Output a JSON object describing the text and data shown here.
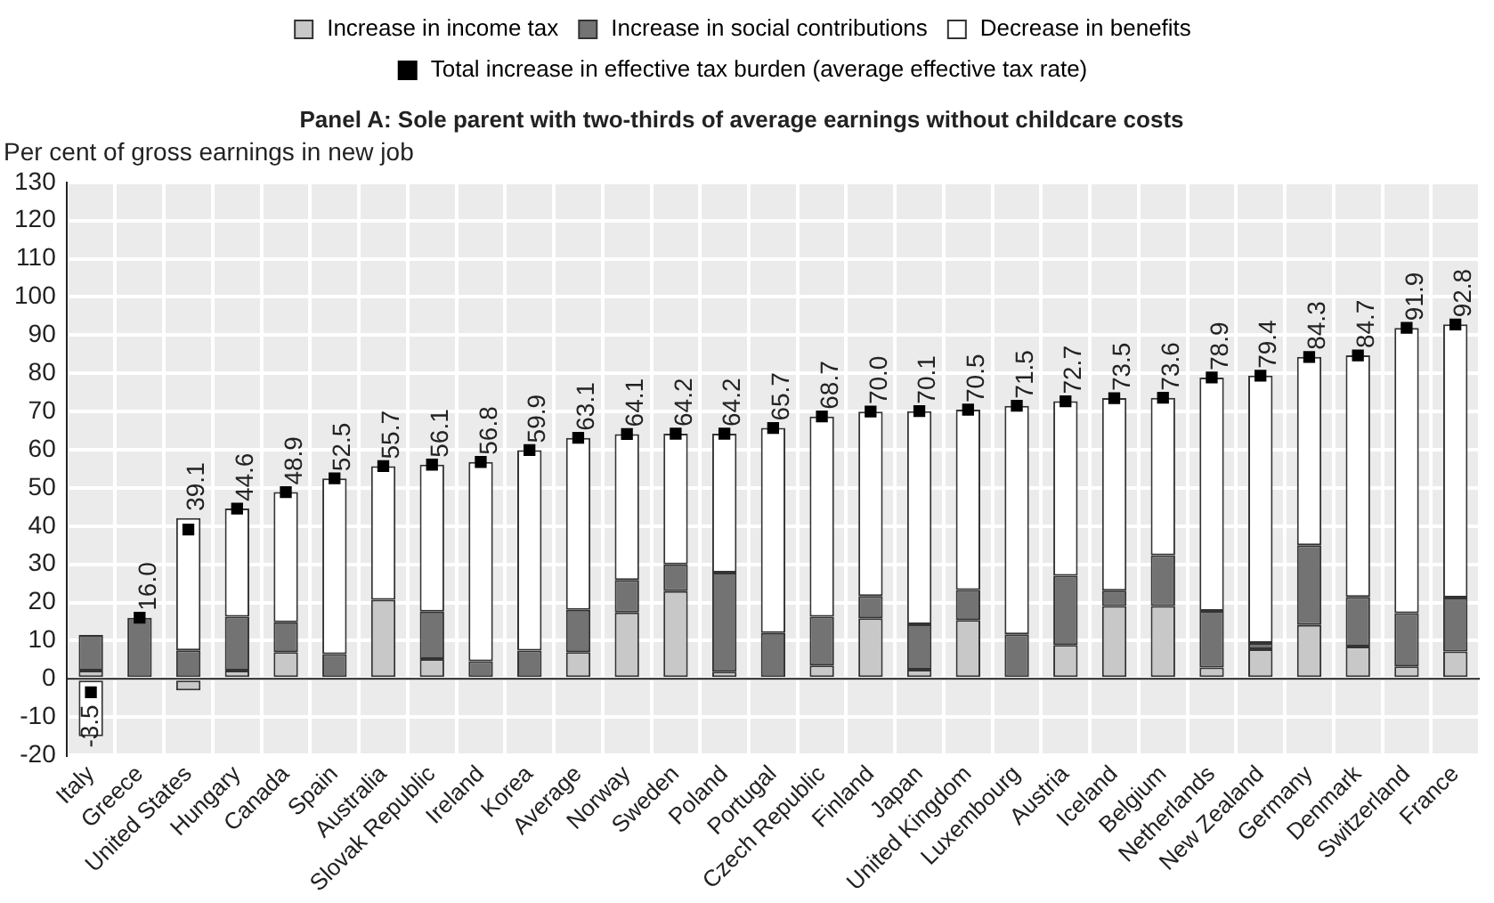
{
  "chart_data": {
    "type": "bar",
    "stacked": true,
    "title": "Panel A: Sole parent with two-thirds of average earnings without childcare costs",
    "ylabel": "Per cent of gross earnings in new job",
    "categories": [
      "Italy",
      "Greece",
      "United States",
      "Hungary",
      "Canada",
      "Spain",
      "Australia",
      "Slovak Republic",
      "Ireland",
      "Korea",
      "Average",
      "Norway",
      "Sweden",
      "Poland",
      "Portugal",
      "Czech Republic",
      "Finland",
      "Japan",
      "United Kingdom",
      "Luxembourg",
      "Austria",
      "Iceland",
      "Belgium",
      "Netherlands",
      "New Zealand",
      "Germany",
      "Denmark",
      "Switzerland",
      "France"
    ],
    "series": [
      {
        "name": "Increase in income tax",
        "color": "#c8c8c8",
        "values": [
          2.2,
          0,
          -3,
          2.2,
          7,
          0,
          20.7,
          5.2,
          0,
          0,
          7,
          17.4,
          23,
          1.9,
          0,
          3.5,
          15.9,
          2.4,
          15.4,
          0,
          8.9,
          19.1,
          19.1,
          3,
          7.8,
          14.1,
          8.5,
          3.3,
          7.2
        ]
      },
      {
        "name": "Increase in social contributions",
        "color": "#737373",
        "values": [
          9.3,
          16,
          7.5,
          14.1,
          7.8,
          6.5,
          0,
          12.4,
          4.6,
          7.4,
          11.1,
          8.5,
          7,
          25.9,
          12,
          12.8,
          5.8,
          11.9,
          7.9,
          11.7,
          18.1,
          4,
          13.3,
          14.8,
          1.6,
          20.9,
          13,
          13.9,
          14.1
        ]
      },
      {
        "name": "Decrease in benefits",
        "color": "#ffffff",
        "values": [
          -15,
          0,
          34.6,
          28.3,
          34.1,
          46,
          35,
          38.5,
          52.2,
          52.5,
          45,
          38.2,
          34.2,
          36.4,
          53.7,
          52.4,
          48.3,
          55.8,
          47.2,
          59.8,
          45.7,
          50.4,
          41.2,
          61.1,
          70,
          49.3,
          63.2,
          74.7,
          71.5
        ]
      },
      {
        "name": "Total increase in effective tax burden (average effective tax rate)",
        "type": "scatter",
        "marker": "square",
        "color": "#000000",
        "x": [
          "Italy",
          "Greece",
          "United States",
          "Hungary",
          "Canada",
          "Spain",
          "Australia",
          "Slovak Republic",
          "Ireland",
          "Korea",
          "Average",
          "Norway",
          "Sweden",
          "Poland",
          "Portugal",
          "Czech Republic",
          "Finland",
          "Japan",
          "United Kingdom",
          "Luxembourg",
          "Austria",
          "Iceland",
          "Belgium",
          "Netherlands",
          "New Zealand",
          "Germany",
          "Denmark",
          "Switzerland",
          "France"
        ],
        "values": [
          -3.5,
          16,
          39.1,
          44.6,
          48.9,
          52.5,
          55.7,
          56.1,
          56.8,
          59.9,
          63.1,
          64.1,
          64.2,
          64.2,
          65.7,
          68.7,
          70,
          70.1,
          70.5,
          71.5,
          72.7,
          73.5,
          73.6,
          78.9,
          79.4,
          84.3,
          84.7,
          91.9,
          92.8
        ],
        "value_labels": [
          "-3.5",
          "16.0",
          "39.1",
          "44.6",
          "48.9",
          "52.5",
          "55.7",
          "56.1",
          "56.8",
          "59.9",
          "63.1",
          "64.1",
          "64.2",
          "64.2",
          "65.7",
          "68.7",
          "70.0",
          "70.1",
          "70.5",
          "71.5",
          "72.7",
          "73.5",
          "73.6",
          "78.9",
          "79.4",
          "84.3",
          "84.7",
          "91.9",
          "92.8"
        ]
      }
    ],
    "ylim": [
      -20,
      130
    ],
    "yticks": [
      -20,
      -10,
      0,
      10,
      20,
      30,
      40,
      50,
      60,
      70,
      80,
      90,
      100,
      110,
      120,
      130
    ],
    "grid": true,
    "legend": "top"
  }
}
